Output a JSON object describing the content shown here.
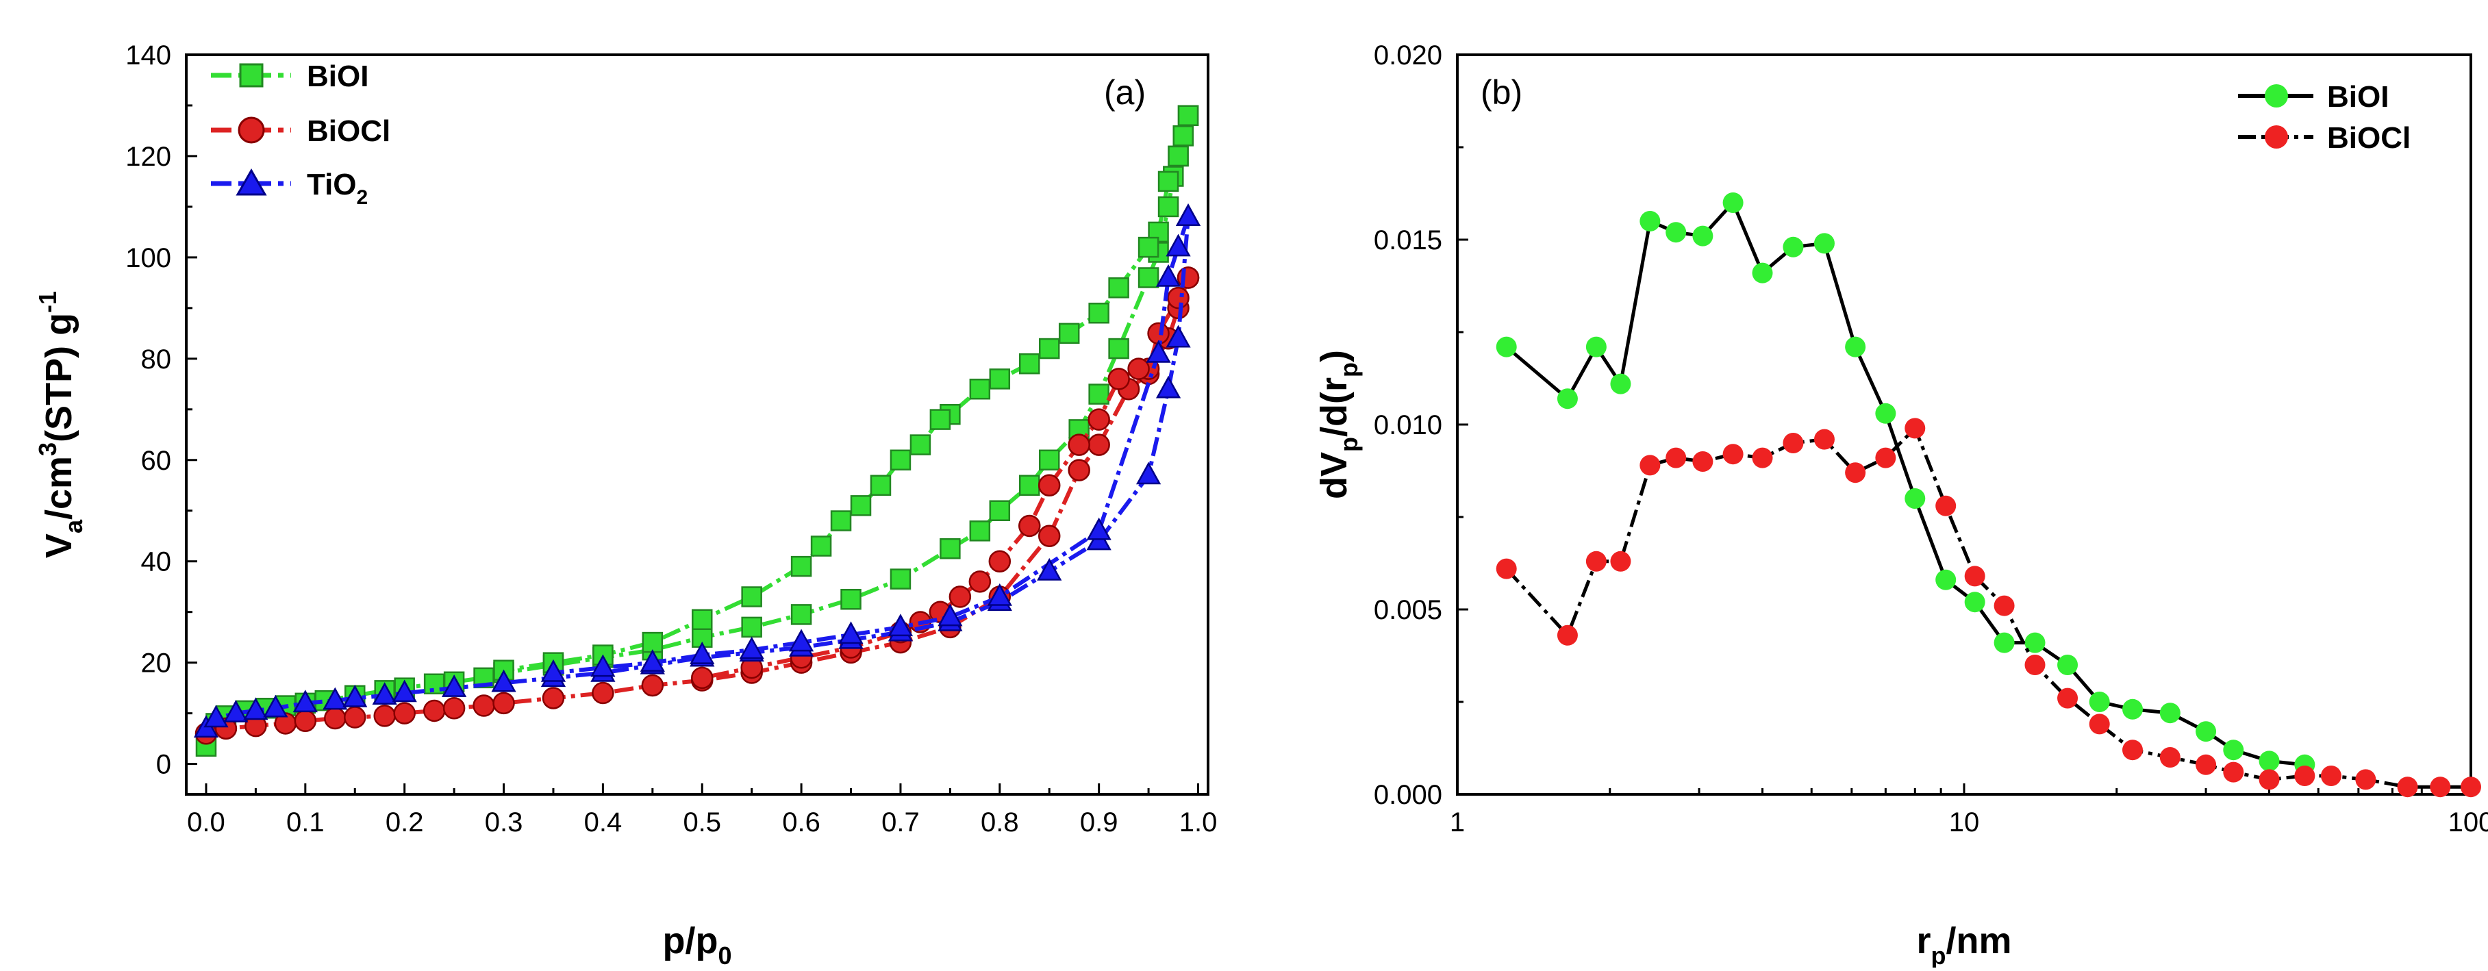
{
  "chart_data": [
    {
      "type": "scatter",
      "panel_label": "(a)",
      "xlabel": {
        "main": "p/p",
        "sub": "0"
      },
      "ylabel": {
        "pre": "V",
        "sub": "a",
        "mid": "/cm",
        "sup": "3",
        "post": "(STP) g",
        "sup2": "-1"
      },
      "xlim": [
        -0.02,
        1.01
      ],
      "ylim": [
        -6,
        140
      ],
      "xticks": [
        0.0,
        0.1,
        0.2,
        0.3,
        0.4,
        0.5,
        0.6,
        0.7,
        0.8,
        0.9,
        1.0
      ],
      "xtick_labels": [
        "0.0",
        "0.1",
        "0.2",
        "0.3",
        "0.4",
        "0.5",
        "0.6",
        "0.7",
        "0.8",
        "0.9",
        "1.0"
      ],
      "yticks": [
        0,
        20,
        40,
        60,
        80,
        100,
        120,
        140
      ],
      "ytick_labels": [
        "0",
        "20",
        "40",
        "60",
        "80",
        "100",
        "120",
        "140"
      ],
      "legend": "top-left",
      "grid": false,
      "series": [
        {
          "name": "BiOI",
          "name_sub": "",
          "color": "#33dd33",
          "stroke": "#228822",
          "marker": "square",
          "adsorption": [
            [
              0.0,
              3.5
            ],
            [
              0.01,
              8
            ],
            [
              0.02,
              9.5
            ],
            [
              0.04,
              10.5
            ],
            [
              0.06,
              11
            ],
            [
              0.08,
              11.5
            ],
            [
              0.1,
              12
            ],
            [
              0.12,
              12.5
            ],
            [
              0.15,
              13.5
            ],
            [
              0.18,
              14.5
            ],
            [
              0.2,
              15
            ],
            [
              0.23,
              15.8
            ],
            [
              0.25,
              16.2
            ],
            [
              0.28,
              17
            ],
            [
              0.3,
              18
            ],
            [
              0.35,
              19.5
            ],
            [
              0.4,
              21
            ],
            [
              0.45,
              22.5
            ],
            [
              0.5,
              25
            ],
            [
              0.55,
              27
            ],
            [
              0.6,
              29.5
            ],
            [
              0.65,
              32.5
            ],
            [
              0.7,
              36.5
            ],
            [
              0.75,
              42.5
            ],
            [
              0.78,
              46
            ],
            [
              0.8,
              50
            ],
            [
              0.83,
              55
            ],
            [
              0.85,
              60
            ],
            [
              0.88,
              66
            ],
            [
              0.9,
              73
            ],
            [
              0.92,
              82
            ],
            [
              0.95,
              96
            ],
            [
              0.96,
              101
            ],
            [
              0.97,
              110
            ],
            [
              0.975,
              116
            ],
            [
              0.98,
              120
            ],
            [
              0.985,
              124
            ],
            [
              0.99,
              128
            ]
          ],
          "desorption": [
            [
              0.99,
              128
            ],
            [
              0.985,
              124
            ],
            [
              0.98,
              120
            ],
            [
              0.97,
              115
            ],
            [
              0.96,
              105
            ],
            [
              0.95,
              102
            ],
            [
              0.92,
              94
            ],
            [
              0.9,
              89
            ],
            [
              0.87,
              85
            ],
            [
              0.85,
              82
            ],
            [
              0.83,
              79
            ],
            [
              0.8,
              76
            ],
            [
              0.78,
              74
            ],
            [
              0.75,
              69
            ],
            [
              0.74,
              68
            ],
            [
              0.72,
              63
            ],
            [
              0.7,
              60
            ],
            [
              0.68,
              55
            ],
            [
              0.66,
              51
            ],
            [
              0.64,
              48
            ],
            [
              0.62,
              43
            ],
            [
              0.6,
              39
            ],
            [
              0.55,
              33
            ],
            [
              0.5,
              28.5
            ],
            [
              0.45,
              24
            ],
            [
              0.4,
              21.5
            ],
            [
              0.35,
              20
            ],
            [
              0.3,
              18.5
            ]
          ]
        },
        {
          "name": "BiOCl",
          "name_sub": "",
          "color": "#dd2222",
          "stroke": "#880000",
          "marker": "circle",
          "adsorption": [
            [
              0.0,
              6
            ],
            [
              0.02,
              7
            ],
            [
              0.05,
              7.5
            ],
            [
              0.08,
              8
            ],
            [
              0.1,
              8.5
            ],
            [
              0.13,
              9
            ],
            [
              0.15,
              9.2
            ],
            [
              0.18,
              9.5
            ],
            [
              0.2,
              10
            ],
            [
              0.23,
              10.5
            ],
            [
              0.25,
              11
            ],
            [
              0.28,
              11.5
            ],
            [
              0.3,
              12
            ],
            [
              0.35,
              13
            ],
            [
              0.4,
              14
            ],
            [
              0.45,
              15.5
            ],
            [
              0.5,
              16.5
            ],
            [
              0.55,
              18
            ],
            [
              0.6,
              20
            ],
            [
              0.65,
              22
            ],
            [
              0.7,
              24
            ],
            [
              0.75,
              27
            ],
            [
              0.8,
              33
            ],
            [
              0.85,
              45
            ],
            [
              0.88,
              58
            ],
            [
              0.9,
              63
            ],
            [
              0.93,
              74
            ],
            [
              0.95,
              77
            ],
            [
              0.97,
              84
            ],
            [
              0.98,
              90
            ],
            [
              0.99,
              96
            ]
          ],
          "desorption": [
            [
              0.99,
              96
            ],
            [
              0.98,
              92
            ],
            [
              0.96,
              85
            ],
            [
              0.95,
              78
            ],
            [
              0.94,
              78
            ],
            [
              0.92,
              76
            ],
            [
              0.9,
              68
            ],
            [
              0.88,
              63
            ],
            [
              0.85,
              55
            ],
            [
              0.83,
              47
            ],
            [
              0.8,
              40
            ],
            [
              0.78,
              36
            ],
            [
              0.76,
              33
            ],
            [
              0.74,
              30
            ],
            [
              0.72,
              28
            ],
            [
              0.7,
              26
            ],
            [
              0.65,
              23
            ],
            [
              0.6,
              21
            ],
            [
              0.55,
              19
            ],
            [
              0.5,
              17
            ]
          ]
        },
        {
          "name": "TiO",
          "name_sub": "2",
          "color": "#1a1aee",
          "stroke": "#000088",
          "marker": "triangle",
          "adsorption": [
            [
              0.0,
              7
            ],
            [
              0.01,
              9
            ],
            [
              0.03,
              10
            ],
            [
              0.05,
              10.5
            ],
            [
              0.07,
              11
            ],
            [
              0.1,
              12
            ],
            [
              0.13,
              12.5
            ],
            [
              0.15,
              13
            ],
            [
              0.18,
              13.5
            ],
            [
              0.2,
              14
            ],
            [
              0.25,
              15
            ],
            [
              0.3,
              16
            ],
            [
              0.35,
              17
            ],
            [
              0.4,
              18
            ],
            [
              0.45,
              19.5
            ],
            [
              0.5,
              21
            ],
            [
              0.55,
              22
            ],
            [
              0.6,
              23
            ],
            [
              0.65,
              24.5
            ],
            [
              0.7,
              26
            ],
            [
              0.75,
              28
            ],
            [
              0.8,
              32
            ],
            [
              0.85,
              38
            ],
            [
              0.9,
              44
            ],
            [
              0.95,
              57
            ],
            [
              0.97,
              74
            ],
            [
              0.98,
              84
            ],
            [
              0.99,
              108
            ]
          ],
          "desorption": [
            [
              0.99,
              108
            ],
            [
              0.98,
              102
            ],
            [
              0.97,
              96
            ],
            [
              0.96,
              81
            ],
            [
              0.9,
              46
            ],
            [
              0.8,
              33
            ],
            [
              0.75,
              29
            ],
            [
              0.7,
              27
            ],
            [
              0.65,
              25.5
            ],
            [
              0.6,
              24
            ],
            [
              0.55,
              22.5
            ],
            [
              0.5,
              21.5
            ],
            [
              0.45,
              20
            ],
            [
              0.4,
              19
            ],
            [
              0.35,
              18
            ]
          ]
        }
      ]
    },
    {
      "type": "line",
      "panel_label": "(b)",
      "xlabel": {
        "main": "r",
        "sub": "p",
        "post": "/nm"
      },
      "ylabel": {
        "a": "dV",
        "sub1": "p",
        "b": "/d(r",
        "sub2": "p",
        "c": ")"
      },
      "x_scale": "log",
      "xlim": [
        1,
        100
      ],
      "ylim": [
        0,
        0.02
      ],
      "xticks": [
        1,
        10,
        100
      ],
      "xtick_labels": [
        "1",
        "10",
        "100"
      ],
      "yticks": [
        0.0,
        0.005,
        0.01,
        0.015,
        0.02
      ],
      "ytick_labels": [
        "0.000",
        "0.005",
        "0.010",
        "0.015",
        "0.020"
      ],
      "legend": "top-right",
      "grid": false,
      "series": [
        {
          "name": "BiOI",
          "color": "#33ee33",
          "points": [
            [
              1.25,
              0.0121
            ],
            [
              1.65,
              0.0107
            ],
            [
              1.88,
              0.0121
            ],
            [
              2.1,
              0.0111
            ],
            [
              2.4,
              0.0155
            ],
            [
              2.7,
              0.0152
            ],
            [
              3.05,
              0.0151
            ],
            [
              3.5,
              0.016
            ],
            [
              4.0,
              0.0141
            ],
            [
              4.6,
              0.0148
            ],
            [
              5.3,
              0.0149
            ],
            [
              6.1,
              0.0121
            ],
            [
              7.0,
              0.0103
            ],
            [
              8.0,
              0.008
            ],
            [
              9.2,
              0.0058
            ],
            [
              10.5,
              0.0052
            ],
            [
              12.0,
              0.0041
            ],
            [
              13.8,
              0.0041
            ],
            [
              16.0,
              0.0035
            ],
            [
              18.5,
              0.0025
            ],
            [
              21.5,
              0.0023
            ],
            [
              25.5,
              0.0022
            ],
            [
              30.0,
              0.0017
            ],
            [
              34.0,
              0.0012
            ],
            [
              40.0,
              0.0009
            ],
            [
              47.0,
              0.0008
            ]
          ]
        },
        {
          "name": "BiOCl",
          "color": "#ee2222",
          "points": [
            [
              1.25,
              0.0061
            ],
            [
              1.65,
              0.0043
            ],
            [
              1.88,
              0.0063
            ],
            [
              2.1,
              0.0063
            ],
            [
              2.4,
              0.0089
            ],
            [
              2.7,
              0.0091
            ],
            [
              3.05,
              0.009
            ],
            [
              3.5,
              0.0092
            ],
            [
              4.0,
              0.0091
            ],
            [
              4.6,
              0.0095
            ],
            [
              5.3,
              0.0096
            ],
            [
              6.1,
              0.0087
            ],
            [
              7.0,
              0.0091
            ],
            [
              8.0,
              0.0099
            ],
            [
              9.2,
              0.0078
            ],
            [
              10.5,
              0.0059
            ],
            [
              12.0,
              0.0051
            ],
            [
              13.8,
              0.0035
            ],
            [
              16.0,
              0.0026
            ],
            [
              18.5,
              0.0019
            ],
            [
              21.5,
              0.0012
            ],
            [
              25.5,
              0.001
            ],
            [
              30.0,
              0.0008
            ],
            [
              34.0,
              0.0006
            ],
            [
              40.0,
              0.0004
            ],
            [
              47.0,
              0.0005
            ],
            [
              53.0,
              0.0005
            ],
            [
              62.0,
              0.0004
            ],
            [
              75.0,
              0.0002
            ],
            [
              87.0,
              0.0002
            ],
            [
              100.0,
              0.0002
            ]
          ]
        }
      ]
    }
  ]
}
